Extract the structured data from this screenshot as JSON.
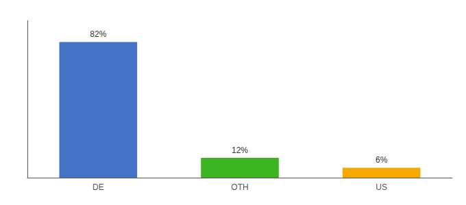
{
  "chart_data": {
    "type": "bar",
    "categories": [
      "DE",
      "OTH",
      "US"
    ],
    "values": [
      82,
      12,
      6
    ],
    "value_labels": [
      "82%",
      "12%",
      "6%"
    ],
    "colors": [
      "#4472c4",
      "#3cb520",
      "#f5a800"
    ],
    "data_labels": true,
    "ylim": [
      0,
      95
    ],
    "tick_labels": "x",
    "grid": false
  }
}
